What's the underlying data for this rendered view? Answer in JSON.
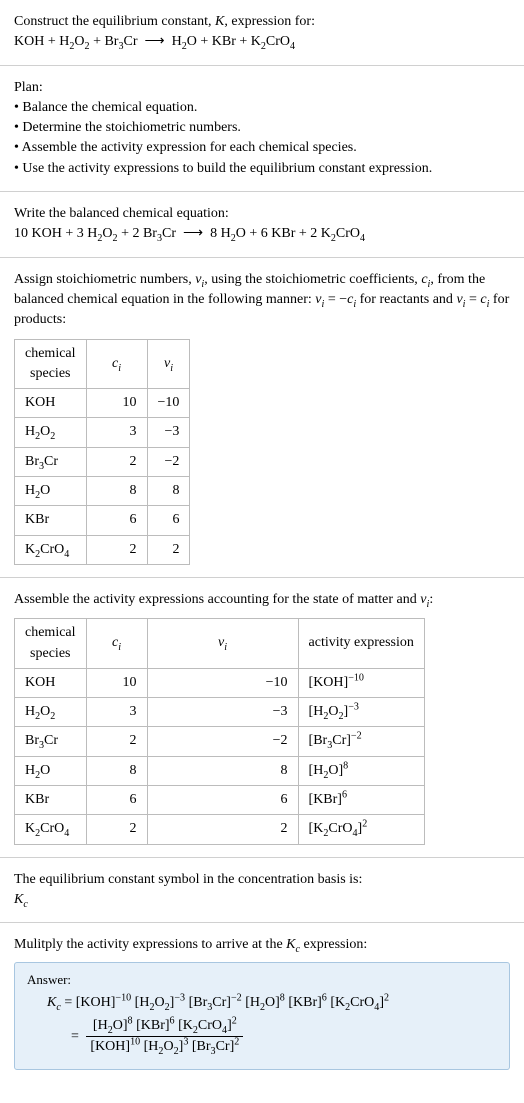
{
  "intro": {
    "line1": "Construct the equilibrium constant, <i>K</i>, expression for:",
    "eq": "KOH + H<sub>2</sub>O<sub>2</sub> + Br<sub>3</sub>Cr &nbsp;&#10230;&nbsp; H<sub>2</sub>O + KBr + K<sub>2</sub>CrO<sub>4</sub>"
  },
  "plan": {
    "title": "Plan:",
    "items": [
      "• Balance the chemical equation.",
      "• Determine the stoichiometric numbers.",
      "• Assemble the activity expression for each chemical species.",
      "• Use the activity expressions to build the equilibrium constant expression."
    ]
  },
  "balanced": {
    "title": "Write the balanced chemical equation:",
    "eq": "10 KOH + 3 H<sub>2</sub>O<sub>2</sub> + 2 Br<sub>3</sub>Cr &nbsp;&#10230;&nbsp; 8 H<sub>2</sub>O + 6 KBr + 2 K<sub>2</sub>CrO<sub>4</sub>"
  },
  "stoich": {
    "para": "Assign stoichiometric numbers, <i>ν<sub>i</sub></i>, using the stoichiometric coefficients, <i>c<sub>i</sub></i>, from the balanced chemical equation in the following manner: <i>ν<sub>i</sub></i> = −<i>c<sub>i</sub></i> for reactants and <i>ν<sub>i</sub></i> = <i>c<sub>i</sub></i> for products:",
    "headers": [
      "chemical species",
      "<i>c<sub>i</sub></i>",
      "<i>ν<sub>i</sub></i>"
    ],
    "rows": [
      [
        "KOH",
        "10",
        "−10"
      ],
      [
        "H<sub>2</sub>O<sub>2</sub>",
        "3",
        "−3"
      ],
      [
        "Br<sub>3</sub>Cr",
        "2",
        "−2"
      ],
      [
        "H<sub>2</sub>O",
        "8",
        "8"
      ],
      [
        "KBr",
        "6",
        "6"
      ],
      [
        "K<sub>2</sub>CrO<sub>4</sub>",
        "2",
        "2"
      ]
    ],
    "col_widths": [
      "120px",
      "40px",
      "40px"
    ]
  },
  "activity": {
    "para": "Assemble the activity expressions accounting for the state of matter and <i>ν<sub>i</sub></i>:",
    "headers": [
      "chemical species",
      "<i>c<sub>i</sub></i>",
      "<i>ν<sub>i</sub></i>",
      "activity expression"
    ],
    "rows": [
      [
        "KOH",
        "10",
        "−10",
        "[KOH]<sup>−10</sup>"
      ],
      [
        "H<sub>2</sub>O<sub>2</sub>",
        "3",
        "−3",
        "[H<sub>2</sub>O<sub>2</sub>]<sup>−3</sup>"
      ],
      [
        "Br<sub>3</sub>Cr",
        "2",
        "−2",
        "[Br<sub>3</sub>Cr]<sup>−2</sup>"
      ],
      [
        "H<sub>2</sub>O",
        "8",
        "8",
        "[H<sub>2</sub>O]<sup>8</sup>"
      ],
      [
        "KBr",
        "6",
        "6",
        "[KBr]<sup>6</sup>"
      ],
      [
        "K<sub>2</sub>CrO<sub>4</sub>",
        "2",
        "2",
        "[K<sub>2</sub>CrO<sub>4</sub>]<sup>2</sup>"
      ]
    ],
    "col_widths": [
      "120px",
      "40px",
      "40px",
      "130px"
    ]
  },
  "symbol": {
    "line1": "The equilibrium constant symbol in the concentration basis is:",
    "line2": "<i>K<sub>c</sub></i>"
  },
  "multiply": {
    "para": "Mulitply the activity expressions to arrive at the <i>K<sub>c</sub></i> expression:"
  },
  "answer": {
    "label": "Answer:",
    "lhs": "<i>K<sub>c</sub></i> = ",
    "prod": "[KOH]<sup>−10</sup> [H<sub>2</sub>O<sub>2</sub>]<sup>−3</sup> [Br<sub>3</sub>Cr]<sup>−2</sup> [H<sub>2</sub>O]<sup>8</sup> [KBr]<sup>6</sup> [K<sub>2</sub>CrO<sub>4</sub>]<sup>2</sup>",
    "eq2_prefix": " = ",
    "frac_num": "[H<sub>2</sub>O]<sup>8</sup> [KBr]<sup>6</sup> [K<sub>2</sub>CrO<sub>4</sub>]<sup>2</sup>",
    "frac_den": "[KOH]<sup>10</sup> [H<sub>2</sub>O<sub>2</sub>]<sup>3</sup> [Br<sub>3</sub>Cr]<sup>2</sup>",
    "box_bg": "#e6f0f9",
    "box_border": "#a8c6e0"
  }
}
